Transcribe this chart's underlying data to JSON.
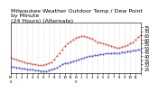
{
  "title": "Milwaukee Weather Outdoor Temp / Dew Point\nby Minute\n(24 Hours) (Alternate)",
  "title_fontsize": 4.5,
  "background_color": "#ffffff",
  "grid_color": "#aaaaaa",
  "temp_color": "#dd2222",
  "dew_color": "#2222cc",
  "xlim": [
    0,
    1440
  ],
  "ylim": [
    20,
    80
  ],
  "yticks": [
    25,
    30,
    35,
    40,
    45,
    50,
    55,
    60,
    65,
    70,
    75
  ],
  "ytick_fontsize": 3.5,
  "xtick_fontsize": 2.8,
  "xtick_labels": [
    "M\n0",
    "1",
    "2",
    "3",
    "4",
    "5",
    "6",
    "7",
    "8",
    "9",
    "10",
    "11",
    "N\n0",
    "1",
    "2",
    "3",
    "4",
    "5",
    "6",
    "7",
    "8",
    "9",
    "10",
    "11",
    ""
  ],
  "xtick_positions": [
    0,
    60,
    120,
    180,
    240,
    300,
    360,
    420,
    480,
    540,
    600,
    660,
    720,
    780,
    840,
    900,
    960,
    1020,
    1080,
    1140,
    1200,
    1260,
    1320,
    1380,
    1440
  ],
  "temp_x": [
    0,
    30,
    60,
    90,
    120,
    150,
    180,
    210,
    240,
    270,
    300,
    330,
    360,
    390,
    420,
    450,
    480,
    510,
    540,
    570,
    600,
    630,
    660,
    690,
    720,
    750,
    780,
    810,
    840,
    870,
    900,
    930,
    960,
    990,
    1020,
    1050,
    1080,
    1110,
    1140,
    1170,
    1200,
    1230,
    1260,
    1290,
    1320,
    1350,
    1380,
    1410,
    1440
  ],
  "temp_y": [
    38,
    37,
    36,
    35,
    34,
    33,
    32,
    31,
    30,
    30,
    29,
    29,
    29,
    30,
    31,
    33,
    36,
    40,
    44,
    48,
    52,
    55,
    58,
    60,
    62,
    63,
    64,
    64,
    63,
    62,
    61,
    59,
    57,
    56,
    55,
    54,
    53,
    52,
    51,
    50,
    50,
    51,
    52,
    53,
    55,
    57,
    60,
    63,
    65
  ],
  "dew_x": [
    0,
    30,
    60,
    90,
    120,
    150,
    180,
    210,
    240,
    270,
    300,
    330,
    360,
    390,
    420,
    450,
    480,
    510,
    540,
    570,
    600,
    630,
    660,
    690,
    720,
    750,
    780,
    810,
    840,
    870,
    900,
    930,
    960,
    990,
    1020,
    1050,
    1080,
    1110,
    1140,
    1170,
    1200,
    1230,
    1260,
    1290,
    1320,
    1350,
    1380,
    1410,
    1440
  ],
  "dew_y": [
    27,
    27,
    26,
    26,
    25,
    25,
    24,
    24,
    24,
    23,
    23,
    22,
    22,
    22,
    23,
    24,
    25,
    26,
    28,
    30,
    31,
    32,
    33,
    34,
    35,
    36,
    37,
    38,
    39,
    40,
    40,
    41,
    41,
    42,
    42,
    43,
    43,
    43,
    44,
    44,
    44,
    45,
    45,
    46,
    46,
    47,
    47,
    48,
    48
  ]
}
